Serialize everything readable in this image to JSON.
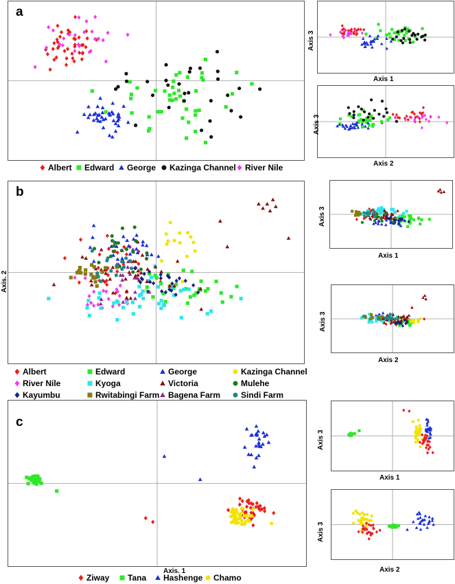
{
  "panels": {
    "a": {
      "letter": "a"
    },
    "b": {
      "letter": "b"
    },
    "c": {
      "letter": "c"
    }
  },
  "legends": {
    "a": [
      {
        "label": "Albert",
        "shape": "diamond",
        "color": "#e8201e"
      },
      {
        "label": "Edward",
        "shape": "square",
        "color": "#2fe82a"
      },
      {
        "label": "George",
        "shape": "triangle",
        "color": "#1a2fd6"
      },
      {
        "label": "Kazinga Channel",
        "shape": "circle",
        "color": "#111111"
      },
      {
        "label": "River Nile",
        "shape": "diamond",
        "color": "#f03cf0"
      }
    ],
    "b": [
      {
        "label": "Albert",
        "shape": "diamond",
        "color": "#e8201e"
      },
      {
        "label": "Edward",
        "shape": "square",
        "color": "#2fe82a"
      },
      {
        "label": "George",
        "shape": "triangle",
        "color": "#1a2fd6"
      },
      {
        "label": "Kazinga Channel",
        "shape": "circle",
        "color": "#f2e400"
      },
      {
        "label": "River Nile",
        "shape": "diamond",
        "color": "#f03cf0"
      },
      {
        "label": "Kyoga",
        "shape": "square",
        "color": "#2ee6ea"
      },
      {
        "label": "Victoria",
        "shape": "triangle",
        "color": "#8b1010"
      },
      {
        "label": "Mulehe",
        "shape": "circle",
        "color": "#1f7a1f"
      },
      {
        "label": "Kayumbu",
        "shape": "diamond",
        "color": "#14237a"
      },
      {
        "label": "Rwitabingi Farm",
        "shape": "square",
        "color": "#8a7a12"
      },
      {
        "label": "Bagena Farm",
        "shape": "triangle",
        "color": "#8a2a8a"
      },
      {
        "label": "Sindi Farm",
        "shape": "circle",
        "color": "#1a8a8a"
      }
    ],
    "c": [
      {
        "label": "Ziway",
        "shape": "diamond",
        "color": "#e8201e"
      },
      {
        "label": "Tana",
        "shape": "square",
        "color": "#2fe82a"
      },
      {
        "label": "Hashenge",
        "shape": "triangle",
        "color": "#1a2fd6"
      },
      {
        "label": "Chamo",
        "shape": "circle",
        "color": "#f2e400"
      }
    ]
  },
  "axis_titles": {
    "b_main_y": "Axis. 2",
    "c_main_x": "Axis. 1",
    "a_s1_x": "Axis 1",
    "a_s1_y": "Axis 3",
    "a_s2_x": "Axis 2",
    "a_s2_y": "Axis 3",
    "b_s1_x": "Axis 1",
    "b_s1_y": "Axis 3",
    "b_s2_x": "Axis 2",
    "b_s2_y": "Axis 3",
    "c_s1_x": "Axis 1",
    "c_s1_y": "Axis 3",
    "c_s2_x": "Axis 2",
    "c_s2_y": "Axis 3"
  },
  "chart_data": [
    {
      "id": "a_main",
      "type": "scatter",
      "grid": false,
      "xlim": [
        -1,
        1
      ],
      "ylim": [
        -1,
        1
      ],
      "clusters": [
        {
          "series": "Albert",
          "cx": -0.62,
          "cy": 0.45,
          "sx": 0.18,
          "sy": 0.28,
          "n": 40
        },
        {
          "series": "River Nile",
          "cx": -0.55,
          "cy": 0.6,
          "sx": 0.25,
          "sy": 0.25,
          "n": 25
        },
        {
          "series": "Edward",
          "cx": 0.2,
          "cy": -0.2,
          "sx": 0.45,
          "sy": 0.4,
          "n": 45
        },
        {
          "series": "George",
          "cx": -0.35,
          "cy": -0.5,
          "sx": 0.13,
          "sy": 0.16,
          "n": 40
        },
        {
          "series": "Kazinga Channel",
          "cx": 0.15,
          "cy": -0.1,
          "sx": 0.45,
          "sy": 0.35,
          "n": 30
        }
      ]
    },
    {
      "id": "a_s1",
      "type": "scatter",
      "xlabel": "Axis 1",
      "ylabel": "Axis 3",
      "xlim": [
        -1,
        1
      ],
      "ylim": [
        -1,
        1
      ],
      "clusters": [
        {
          "series": "Albert",
          "cx": -0.55,
          "cy": 0.2,
          "sx": 0.2,
          "sy": 0.15,
          "n": 25
        },
        {
          "series": "River Nile",
          "cx": -0.6,
          "cy": 0.1,
          "sx": 0.2,
          "sy": 0.15,
          "n": 15
        },
        {
          "series": "Edward",
          "cx": 0.2,
          "cy": 0.1,
          "sx": 0.4,
          "sy": 0.25,
          "n": 30
        },
        {
          "series": "George",
          "cx": -0.2,
          "cy": -0.2,
          "sx": 0.2,
          "sy": 0.15,
          "n": 25
        },
        {
          "series": "Kazinga Channel",
          "cx": 0.4,
          "cy": 0.0,
          "sx": 0.25,
          "sy": 0.3,
          "n": 20
        }
      ]
    },
    {
      "id": "a_s2",
      "type": "scatter",
      "xlabel": "Axis 2",
      "ylabel": "Axis 3",
      "xlim": [
        -1,
        1
      ],
      "ylim": [
        -1,
        1
      ],
      "clusters": [
        {
          "series": "Albert",
          "cx": 0.4,
          "cy": 0.15,
          "sx": 0.3,
          "sy": 0.2,
          "n": 25
        },
        {
          "series": "River Nile",
          "cx": 0.5,
          "cy": 0.05,
          "sx": 0.3,
          "sy": 0.15,
          "n": 15
        },
        {
          "series": "Edward",
          "cx": -0.4,
          "cy": 0.05,
          "sx": 0.3,
          "sy": 0.2,
          "n": 30
        },
        {
          "series": "George",
          "cx": -0.55,
          "cy": -0.15,
          "sx": 0.2,
          "sy": 0.1,
          "n": 25
        },
        {
          "series": "Kazinga Channel",
          "cx": -0.3,
          "cy": 0.3,
          "sx": 0.3,
          "sy": 0.35,
          "n": 20
        }
      ]
    },
    {
      "id": "b_main",
      "type": "scatter",
      "ylabel": "Axis. 2",
      "xlim": [
        -1,
        1
      ],
      "ylim": [
        -1,
        1
      ],
      "clusters": [
        {
          "series": "Albert",
          "cx": -0.3,
          "cy": 0.05,
          "sx": 0.25,
          "sy": 0.3,
          "n": 30
        },
        {
          "series": "Edward",
          "cx": 0.2,
          "cy": -0.2,
          "sx": 0.3,
          "sy": 0.2,
          "n": 30
        },
        {
          "series": "George",
          "cx": -0.2,
          "cy": 0.25,
          "sx": 0.2,
          "sy": 0.2,
          "n": 30
        },
        {
          "series": "Kazinga Channel",
          "cx": 0.15,
          "cy": 0.35,
          "sx": 0.2,
          "sy": 0.3,
          "n": 15
        },
        {
          "series": "River Nile",
          "cx": -0.35,
          "cy": -0.3,
          "sx": 0.2,
          "sy": 0.15,
          "n": 20
        },
        {
          "series": "Kyoga",
          "cx": -0.1,
          "cy": -0.3,
          "sx": 0.4,
          "sy": 0.25,
          "n": 40
        },
        {
          "series": "Victoria",
          "cx": -0.2,
          "cy": 0.0,
          "sx": 0.35,
          "sy": 0.3,
          "n": 40
        },
        {
          "series": "Mulehe",
          "cx": -0.2,
          "cy": 0.3,
          "sx": 0.15,
          "sy": 0.25,
          "n": 20
        },
        {
          "series": "Kayumbu",
          "cx": 0.05,
          "cy": -0.1,
          "sx": 0.25,
          "sy": 0.15,
          "n": 25
        },
        {
          "series": "Rwitabingi Farm",
          "cx": -0.45,
          "cy": 0.0,
          "sx": 0.1,
          "sy": 0.12,
          "n": 20
        },
        {
          "series": "Bagena Farm",
          "cx": -0.25,
          "cy": -0.1,
          "sx": 0.2,
          "sy": 0.2,
          "n": 15
        },
        {
          "series": "Sindi Farm",
          "cx": -0.3,
          "cy": 0.1,
          "sx": 0.15,
          "sy": 0.2,
          "n": 15
        }
      ],
      "outliers": [
        {
          "series": "Victoria",
          "points": [
            [
              0.75,
              0.75
            ],
            [
              0.8,
              0.72
            ],
            [
              0.72,
              0.8
            ],
            [
              0.78,
              0.8
            ],
            [
              0.84,
              0.77
            ],
            [
              0.82,
              0.85
            ],
            [
              0.93,
              0.4
            ],
            [
              0.45,
              0.6
            ],
            [
              0.5,
              0.3
            ]
          ]
        }
      ]
    },
    {
      "id": "b_s1",
      "type": "scatter",
      "xlabel": "Axis 1",
      "ylabel": "Axis 3",
      "xlim": [
        -1,
        1
      ],
      "ylim": [
        -1,
        1
      ],
      "clusters": [
        {
          "series": "Albert",
          "cx": -0.3,
          "cy": -0.05,
          "sx": 0.25,
          "sy": 0.2,
          "n": 20
        },
        {
          "series": "Edward",
          "cx": 0.35,
          "cy": -0.2,
          "sx": 0.25,
          "sy": 0.15,
          "n": 20
        },
        {
          "series": "George",
          "cx": -0.1,
          "cy": -0.25,
          "sx": 0.25,
          "sy": 0.15,
          "n": 20
        },
        {
          "series": "Kyoga",
          "cx": -0.05,
          "cy": 0.1,
          "sx": 0.35,
          "sy": 0.15,
          "n": 25
        },
        {
          "series": "Victoria",
          "cx": -0.1,
          "cy": -0.05,
          "sx": 0.3,
          "sy": 0.2,
          "n": 25
        },
        {
          "series": "Kayumbu",
          "cx": 0.05,
          "cy": -0.2,
          "sx": 0.2,
          "sy": 0.12,
          "n": 15
        },
        {
          "series": "Rwitabingi Farm",
          "cx": -0.6,
          "cy": 0.05,
          "sx": 0.08,
          "sy": 0.1,
          "n": 12
        },
        {
          "series": "Mulehe",
          "cx": -0.2,
          "cy": -0.15,
          "sx": 0.2,
          "sy": 0.15,
          "n": 12
        },
        {
          "series": "Sindi Farm",
          "cx": -0.4,
          "cy": 0.05,
          "sx": 0.15,
          "sy": 0.1,
          "n": 12
        }
      ],
      "outliers": [
        {
          "series": "Victoria",
          "points": [
            [
              0.85,
              0.82
            ],
            [
              0.9,
              0.78
            ],
            [
              0.88,
              0.88
            ],
            [
              0.95,
              0.8
            ]
          ]
        }
      ]
    },
    {
      "id": "b_s2",
      "type": "scatter",
      "xlabel": "Axis 2",
      "ylabel": "Axis 3",
      "xlim": [
        -1,
        1
      ],
      "ylim": [
        -1,
        1
      ],
      "clusters": [
        {
          "series": "Albert",
          "cx": 0.0,
          "cy": -0.05,
          "sx": 0.25,
          "sy": 0.12,
          "n": 20
        },
        {
          "series": "Edward",
          "cx": 0.2,
          "cy": -0.1,
          "sx": 0.2,
          "sy": 0.1,
          "n": 15
        },
        {
          "series": "George",
          "cx": -0.2,
          "cy": 0.05,
          "sx": 0.2,
          "sy": 0.1,
          "n": 20
        },
        {
          "series": "Kazinga Channel",
          "cx": 0.4,
          "cy": -0.05,
          "sx": 0.15,
          "sy": 0.1,
          "n": 10
        },
        {
          "series": "Kyoga",
          "cx": -0.3,
          "cy": 0.0,
          "sx": 0.25,
          "sy": 0.12,
          "n": 25
        },
        {
          "series": "Victoria",
          "cx": 0.05,
          "cy": 0.0,
          "sx": 0.3,
          "sy": 0.15,
          "n": 25
        },
        {
          "series": "Kayumbu",
          "cx": 0.15,
          "cy": -0.15,
          "sx": 0.15,
          "sy": 0.1,
          "n": 15
        },
        {
          "series": "Rwitabingi Farm",
          "cx": -0.3,
          "cy": 0.05,
          "sx": 0.15,
          "sy": 0.08,
          "n": 12
        },
        {
          "series": "Sindi Farm",
          "cx": -0.1,
          "cy": 0.05,
          "sx": 0.2,
          "sy": 0.1,
          "n": 12
        }
      ],
      "outliers": [
        {
          "series": "Victoria",
          "points": [
            [
              0.55,
              0.75
            ],
            [
              0.6,
              0.7
            ],
            [
              0.58,
              0.82
            ],
            [
              0.35,
              0.4
            ]
          ]
        }
      ]
    },
    {
      "id": "c_main",
      "type": "scatter",
      "xlabel": "Axis. 1",
      "xlim": [
        -1,
        1
      ],
      "ylim": [
        -1,
        1
      ],
      "clusters": [
        {
          "series": "Tana",
          "cx": -0.85,
          "cy": 0.05,
          "sx": 0.03,
          "sy": 0.04,
          "n": 40
        },
        {
          "series": "Hashenge",
          "cx": 0.7,
          "cy": 0.55,
          "sx": 0.07,
          "sy": 0.22,
          "n": 25
        },
        {
          "series": "Ziway",
          "cx": 0.65,
          "cy": -0.35,
          "sx": 0.1,
          "sy": 0.12,
          "n": 40
        },
        {
          "series": "Chamo",
          "cx": 0.57,
          "cy": -0.42,
          "sx": 0.1,
          "sy": 0.12,
          "n": 40
        }
      ],
      "outliers": [
        {
          "series": "Ziway",
          "points": [
            [
              -0.08,
              -0.45
            ],
            [
              -0.03,
              -0.5
            ]
          ]
        },
        {
          "series": "Hashenge",
          "points": [
            [
              0.05,
              0.35
            ],
            [
              0.3,
              0.05
            ]
          ]
        },
        {
          "series": "Tana",
          "points": [
            [
              -0.7,
              -0.1
            ]
          ]
        }
      ]
    },
    {
      "id": "c_s1",
      "type": "scatter",
      "xlabel": "Axis 1",
      "ylabel": "Axis 3",
      "xlim": [
        -1,
        1
      ],
      "ylim": [
        -1,
        1
      ],
      "clusters": [
        {
          "series": "Tana",
          "cx": -0.75,
          "cy": 0.05,
          "sx": 0.03,
          "sy": 0.04,
          "n": 20
        },
        {
          "series": "Chamo",
          "cx": 0.45,
          "cy": 0.1,
          "sx": 0.07,
          "sy": 0.35,
          "n": 30
        },
        {
          "series": "Hashenge",
          "cx": 0.65,
          "cy": 0.2,
          "sx": 0.05,
          "sy": 0.3,
          "n": 20
        },
        {
          "series": "Ziway",
          "cx": 0.6,
          "cy": -0.2,
          "sx": 0.08,
          "sy": 0.25,
          "n": 25
        }
      ],
      "outliers": [
        {
          "series": "Ziway",
          "points": [
            [
              0.3,
              0.85
            ],
            [
              0.2,
              0.88
            ]
          ]
        },
        {
          "series": "Tana",
          "points": [
            [
              -0.6,
              0.18
            ]
          ]
        }
      ]
    },
    {
      "id": "c_s2",
      "type": "scatter",
      "xlabel": "Axis 2",
      "ylabel": "Axis 3",
      "xlim": [
        -1,
        1
      ],
      "ylim": [
        -1,
        1
      ],
      "clusters": [
        {
          "series": "Tana",
          "cx": 0.05,
          "cy": -0.05,
          "sx": 0.08,
          "sy": 0.04,
          "n": 20
        },
        {
          "series": "Chamo",
          "cx": -0.55,
          "cy": 0.15,
          "sx": 0.15,
          "sy": 0.25,
          "n": 30
        },
        {
          "series": "Ziway",
          "cx": -0.45,
          "cy": -0.2,
          "sx": 0.15,
          "sy": 0.2,
          "n": 25
        },
        {
          "series": "Hashenge",
          "cx": 0.55,
          "cy": 0.1,
          "sx": 0.25,
          "sy": 0.3,
          "n": 25
        }
      ]
    }
  ]
}
